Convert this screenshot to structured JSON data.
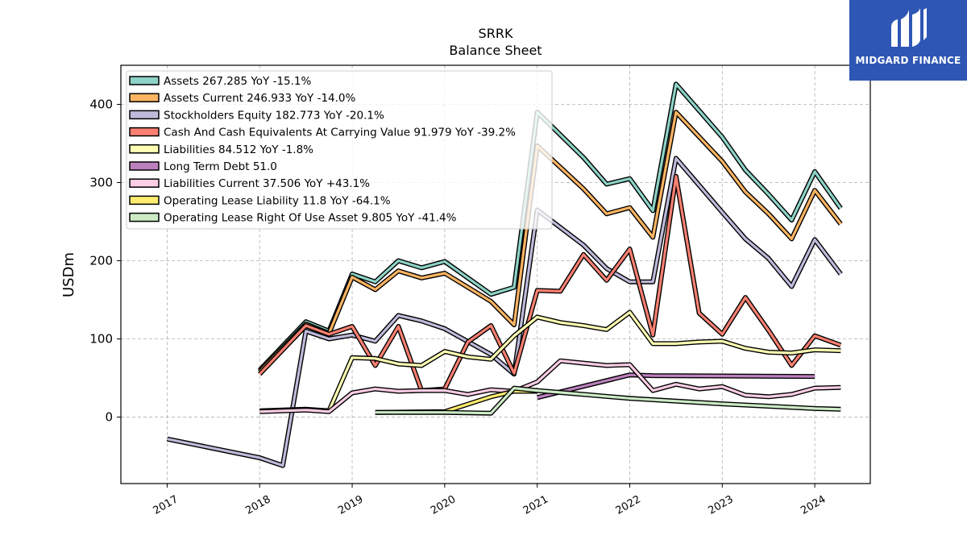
{
  "chart_data": {
    "type": "line",
    "title": "SRRK",
    "subtitle": "Balance  Sheet",
    "xlabel": "",
    "ylabel": "USDm",
    "xlim": [
      2016.5,
      2024.6
    ],
    "ylim": [
      -85,
      450
    ],
    "yticks": [
      0,
      100,
      200,
      300,
      400
    ],
    "xticks": [
      2017,
      2018,
      2019,
      2020,
      2021,
      2022,
      2023,
      2024
    ],
    "grid": true,
    "legend_position": "top-left",
    "series": [
      {
        "name": "Assets  267.285 YoY -15.1%",
        "color": "#8dd3c7",
        "x": [
          2018.0,
          2018.5,
          2018.75,
          2019.0,
          2019.25,
          2019.5,
          2019.75,
          2020.0,
          2020.5,
          2020.75,
          2021.0,
          2021.5,
          2021.75,
          2022.0,
          2022.25,
          2022.5,
          2023.0,
          2023.25,
          2023.5,
          2023.75,
          2024.0,
          2024.28
        ],
        "y": [
          60,
          122,
          110,
          183,
          173,
          200,
          191,
          199,
          157,
          166,
          390,
          332,
          298,
          305,
          264,
          426,
          358,
          316,
          285,
          252,
          314,
          267
        ]
      },
      {
        "name": "Assets Current  246.933 YoY -14.0%",
        "color": "#fdb462",
        "x": [
          2018.0,
          2018.5,
          2018.75,
          2019.0,
          2019.25,
          2019.5,
          2019.75,
          2020.0,
          2020.5,
          2020.75,
          2021.0,
          2021.5,
          2021.75,
          2022.0,
          2022.25,
          2022.5,
          2023.0,
          2023.25,
          2023.5,
          2023.75,
          2024.0,
          2024.28
        ],
        "y": [
          58,
          119,
          107,
          179,
          163,
          187,
          178,
          184,
          148,
          118,
          347,
          292,
          260,
          268,
          230,
          390,
          327,
          288,
          260,
          228,
          290,
          247
        ]
      },
      {
        "name": "Stockholders Equity  182.773 YoY -20.1%",
        "color": "#bebada",
        "x": [
          2017.0,
          2018.0,
          2018.25,
          2018.5,
          2018.75,
          2019.0,
          2019.25,
          2019.5,
          2019.75,
          2020.0,
          2020.5,
          2020.75,
          2021.0,
          2021.5,
          2021.75,
          2022.0,
          2022.25,
          2022.5,
          2023.0,
          2023.25,
          2023.5,
          2023.75,
          2024.0,
          2024.28
        ],
        "y": [
          -28,
          -52,
          -62,
          110,
          100,
          105,
          97,
          130,
          123,
          113,
          80,
          55,
          265,
          220,
          190,
          173,
          173,
          331,
          262,
          228,
          203,
          167,
          227,
          183
        ]
      },
      {
        "name": "Cash And Cash Equivalents At Carrying Value  91.979 YoY -39.2%",
        "color": "#fb8072",
        "x": [
          2018.0,
          2018.5,
          2018.75,
          2019.0,
          2019.25,
          2019.5,
          2019.75,
          2020.0,
          2020.25,
          2020.5,
          2020.75,
          2021.0,
          2021.25,
          2021.5,
          2021.75,
          2022.0,
          2022.25,
          2022.5,
          2022.75,
          2023.0,
          2023.25,
          2023.5,
          2023.75,
          2024.0,
          2024.28
        ],
        "y": [
          55,
          117,
          106,
          116,
          66,
          116,
          34,
          36,
          96,
          117,
          56,
          162,
          161,
          208,
          175,
          215,
          105,
          308,
          133,
          106,
          153,
          111,
          66,
          104,
          92
        ]
      },
      {
        "name": "Liabilities  84.512 YoY -1.8%",
        "color": "#ffffb3",
        "x": [
          2018.0,
          2018.5,
          2018.75,
          2019.0,
          2019.25,
          2019.5,
          2019.75,
          2020.0,
          2020.25,
          2020.5,
          2020.75,
          2021.0,
          2021.25,
          2021.5,
          2021.75,
          2022.0,
          2022.25,
          2022.5,
          2022.75,
          2023.0,
          2023.25,
          2023.5,
          2023.75,
          2024.0,
          2024.28
        ],
        "y": [
          8,
          10,
          8,
          76,
          75,
          68,
          66,
          84,
          77,
          74,
          104,
          128,
          121,
          117,
          112,
          134,
          94,
          94,
          96,
          97,
          88,
          83,
          82,
          86,
          85
        ]
      },
      {
        "name": "Long Term Debt  51.0",
        "color": "#bc80bd",
        "x": [
          2021.0,
          2022.0,
          2022.25,
          2024.0
        ],
        "y": [
          25,
          54,
          53,
          52
        ]
      },
      {
        "name": "Liabilities Current  37.506 YoY +43.1%",
        "color": "#fccde5",
        "x": [
          2018.0,
          2018.5,
          2018.75,
          2019.0,
          2019.25,
          2019.5,
          2019.75,
          2020.0,
          2020.25,
          2020.5,
          2020.75,
          2021.0,
          2021.25,
          2021.5,
          2021.75,
          2022.0,
          2022.25,
          2022.5,
          2022.75,
          2023.0,
          2023.25,
          2023.5,
          2023.75,
          2024.0,
          2024.28
        ],
        "y": [
          7,
          9,
          7,
          31,
          36,
          33,
          34,
          34,
          29,
          35,
          33,
          45,
          72,
          69,
          66,
          67,
          34,
          42,
          36,
          39,
          28,
          26,
          29,
          37,
          38
        ]
      },
      {
        "name": "Operating Lease Liability  11.8 YoY -64.1%",
        "color": "#ffed6f",
        "x": [
          2019.25,
          2020.0,
          2020.5,
          2020.75,
          2021.0
        ],
        "y": [
          6,
          7,
          26,
          33,
          33
        ]
      },
      {
        "name": "Operating Lease Right Of Use Asset  9.805 YoY -41.4%",
        "color": "#ccebc5",
        "x": [
          2019.25,
          2020.0,
          2020.5,
          2020.75,
          2021.0,
          2021.5,
          2022.0,
          2023.0,
          2024.0,
          2024.28
        ],
        "y": [
          6,
          6,
          5,
          37,
          34,
          29,
          24,
          17,
          11,
          10
        ]
      }
    ]
  },
  "logo": {
    "text": "MIDGARD FINANCE"
  }
}
